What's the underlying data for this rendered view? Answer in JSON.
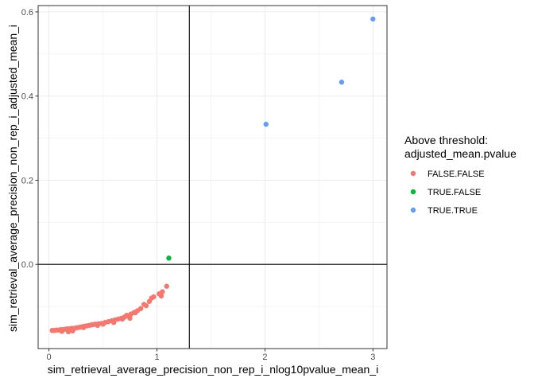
{
  "chart_data": {
    "type": "scatter",
    "title": "",
    "xlabel": "sim_retrieval_average_precision_non_rep_i_nlog10pvalue_mean_i",
    "ylabel": "sim_retrieval_average_precision_non_rep_i_adjusted_mean_i",
    "xlim": [
      -0.1,
      3.13
    ],
    "ylim": [
      -0.2,
      0.615
    ],
    "x_ticks": [
      0,
      1,
      2,
      3
    ],
    "x_tick_labels": [
      "0",
      "1",
      "2",
      "3"
    ],
    "y_ticks": [
      0.0,
      0.2,
      0.4,
      0.6
    ],
    "y_tick_labels": [
      "0.0",
      "0.2",
      "0.4",
      "0.6"
    ],
    "grid": true,
    "reference_lines": {
      "vertical_x": 1.3,
      "horizontal_y": 0.0
    },
    "legend": {
      "title_lines": [
        "Above threshold:",
        "adjusted_mean.pvalue"
      ],
      "placement": "right"
    },
    "series": [
      {
        "name": "FALSE.FALSE",
        "color": "#F8766D",
        "points": [
          [
            0.03,
            -0.157
          ],
          [
            0.05,
            -0.157
          ],
          [
            0.07,
            -0.156
          ],
          [
            0.09,
            -0.156
          ],
          [
            0.11,
            -0.155
          ],
          [
            0.13,
            -0.155
          ],
          [
            0.15,
            -0.154
          ],
          [
            0.17,
            -0.153
          ],
          [
            0.19,
            -0.153
          ],
          [
            0.21,
            -0.152
          ],
          [
            0.23,
            -0.152
          ],
          [
            0.25,
            -0.151
          ],
          [
            0.27,
            -0.15
          ],
          [
            0.29,
            -0.149
          ],
          [
            0.31,
            -0.148
          ],
          [
            0.33,
            -0.147
          ],
          [
            0.35,
            -0.146
          ],
          [
            0.37,
            -0.145
          ],
          [
            0.39,
            -0.144
          ],
          [
            0.41,
            -0.143
          ],
          [
            0.43,
            -0.142
          ],
          [
            0.46,
            -0.141
          ],
          [
            0.49,
            -0.14
          ],
          [
            0.52,
            -0.138
          ],
          [
            0.55,
            -0.136
          ],
          [
            0.58,
            -0.134
          ],
          [
            0.61,
            -0.132
          ],
          [
            0.64,
            -0.13
          ],
          [
            0.67,
            -0.128
          ],
          [
            0.7,
            -0.125
          ],
          [
            0.73,
            -0.122
          ],
          [
            0.76,
            -0.118
          ],
          [
            0.79,
            -0.114
          ],
          [
            0.82,
            -0.11
          ],
          [
            0.85,
            -0.105
          ],
          [
            0.88,
            -0.095
          ],
          [
            0.93,
            -0.088
          ],
          [
            0.97,
            -0.077
          ],
          [
            1.02,
            -0.07
          ],
          [
            1.05,
            -0.065
          ],
          [
            1.09,
            -0.052
          ],
          [
            0.18,
            -0.16
          ],
          [
            0.22,
            -0.158
          ],
          [
            0.12,
            -0.159
          ],
          [
            0.32,
            -0.15
          ],
          [
            0.45,
            -0.145
          ],
          [
            0.6,
            -0.138
          ],
          [
            0.68,
            -0.13
          ],
          [
            0.75,
            -0.128
          ],
          [
            0.8,
            -0.115
          ],
          [
            0.9,
            -0.098
          ],
          [
            0.95,
            -0.08
          ],
          [
            1.04,
            -0.075
          ],
          [
            0.5,
            -0.142
          ],
          [
            0.72,
            -0.121
          ]
        ]
      },
      {
        "name": "TRUE.FALSE",
        "color": "#00BA38",
        "points": [
          [
            1.11,
            0.015
          ]
        ]
      },
      {
        "name": "TRUE.TRUE",
        "color": "#619CFF",
        "points": [
          [
            2.01,
            0.333
          ],
          [
            2.71,
            0.433
          ],
          [
            3.0,
            0.583
          ]
        ]
      }
    ]
  }
}
